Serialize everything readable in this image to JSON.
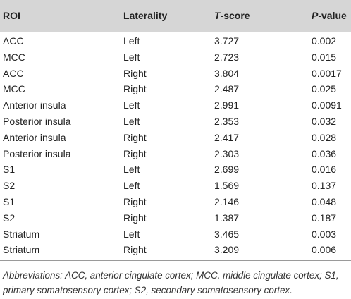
{
  "table": {
    "header": [
      "ROI",
      "Laterality",
      {
        "italic": "T",
        "text": "-score"
      },
      {
        "italic": "P",
        "text": "-value"
      }
    ],
    "rows": [
      [
        "ACC",
        "Left",
        "3.727",
        "0.002"
      ],
      [
        "MCC",
        "Left",
        "2.723",
        "0.015"
      ],
      [
        "ACC",
        "Right",
        "3.804",
        "0.0017"
      ],
      [
        "MCC",
        "Right",
        "2.487",
        "0.025"
      ],
      [
        "Anterior insula",
        "Left",
        "2.991",
        "0.0091"
      ],
      [
        "Posterior insula",
        "Left",
        "2.353",
        "0.032"
      ],
      [
        "Anterior insula",
        "Right",
        "2.417",
        "0.028"
      ],
      [
        "Posterior insula",
        "Right",
        "2.303",
        "0.036"
      ],
      [
        "S1",
        "Left",
        "2.699",
        "0.016"
      ],
      [
        "S2",
        "Left",
        "1.569",
        "0.137"
      ],
      [
        "S1",
        "Right",
        "2.146",
        "0.048"
      ],
      [
        "S2",
        "Right",
        "1.387",
        "0.187"
      ],
      [
        "Striatum",
        "Left",
        "3.465",
        "0.003"
      ],
      [
        "Striatum",
        "Right",
        "3.209",
        "0.006"
      ]
    ],
    "footnote": "Abbreviations: ACC, anterior cingulate cortex; MCC, middle cingulate cortex; S1, primary somatosensory cortex; S2, secondary somatosensory cortex."
  }
}
